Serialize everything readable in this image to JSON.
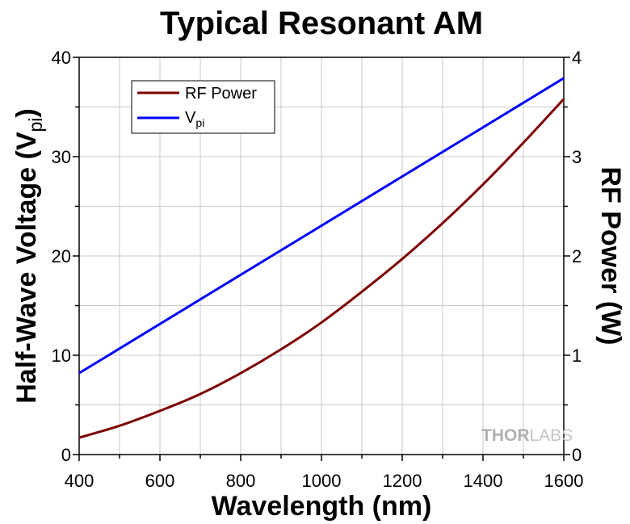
{
  "chart_data": {
    "type": "line",
    "title": "Typical Resonant AM",
    "xlabel": "Wavelength (nm)",
    "ylabel": "Half-Wave Voltage (V",
    "ylabel_sub": "pi",
    "ylabel_end": ")",
    "y2label": "RF Power (W)",
    "xlim": [
      400,
      1600
    ],
    "ylim": [
      0,
      40
    ],
    "y2lim": [
      0,
      4
    ],
    "x_ticks": [
      400,
      600,
      800,
      1000,
      1200,
      1400,
      1600
    ],
    "y_ticks": [
      0,
      10,
      20,
      30,
      40
    ],
    "y2_ticks": [
      0,
      1,
      2,
      3,
      4
    ],
    "grid": true,
    "legend_position": "top-left",
    "legend": [
      {
        "label": "RF Power",
        "sub": ""
      },
      {
        "label": "V",
        "sub": "pi"
      }
    ],
    "series": [
      {
        "name": "RF Power",
        "axis": "right",
        "color": "#7f0000",
        "x": [
          400,
          500,
          600,
          700,
          800,
          900,
          1000,
          1100,
          1200,
          1300,
          1400,
          1500,
          1600
        ],
        "y": [
          0.17,
          0.29,
          0.44,
          0.61,
          0.82,
          1.06,
          1.33,
          1.64,
          1.97,
          2.33,
          2.72,
          3.14,
          3.58
        ]
      },
      {
        "name": "Vpi",
        "axis": "left",
        "color": "#0000ff",
        "x": [
          400,
          1600
        ],
        "y": [
          8.2,
          37.9
        ]
      }
    ]
  },
  "watermark": {
    "bold": "THOR",
    "light": "LABS"
  }
}
